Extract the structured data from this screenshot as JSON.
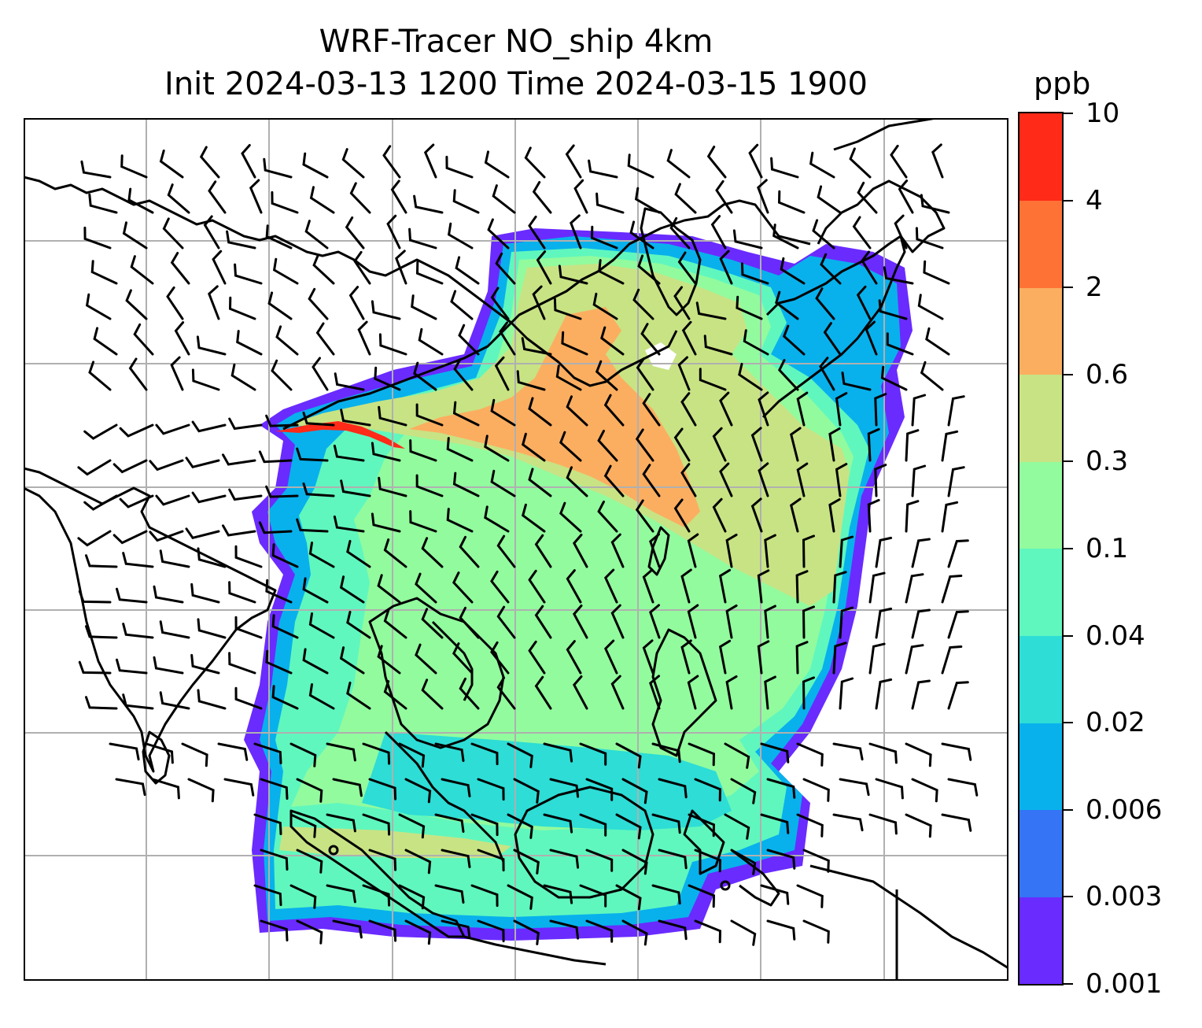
{
  "title_line1": "WRF-Tracer NO_ship 4km",
  "title_line2": "Init 2024-03-13 1200 Time 2024-03-15 1900",
  "colorbar": {
    "unit": "ppb",
    "levels": [
      "0.001",
      "0.003",
      "0.006",
      "0.02",
      "0.04",
      "0.1",
      "0.3",
      "0.6",
      "2",
      "4",
      "10"
    ],
    "colors": [
      "#6a2bff",
      "#3474f5",
      "#08b1ec",
      "#2dddd6",
      "#5ff7be",
      "#92fb9e",
      "#c8e384",
      "#fbae60",
      "#ff7236",
      "#ff2a18"
    ]
  },
  "map": {
    "background": "#ffffff",
    "coastline_color": "#000000",
    "gridline_color": "#b0b0b0",
    "barb_color": "#000000"
  }
}
